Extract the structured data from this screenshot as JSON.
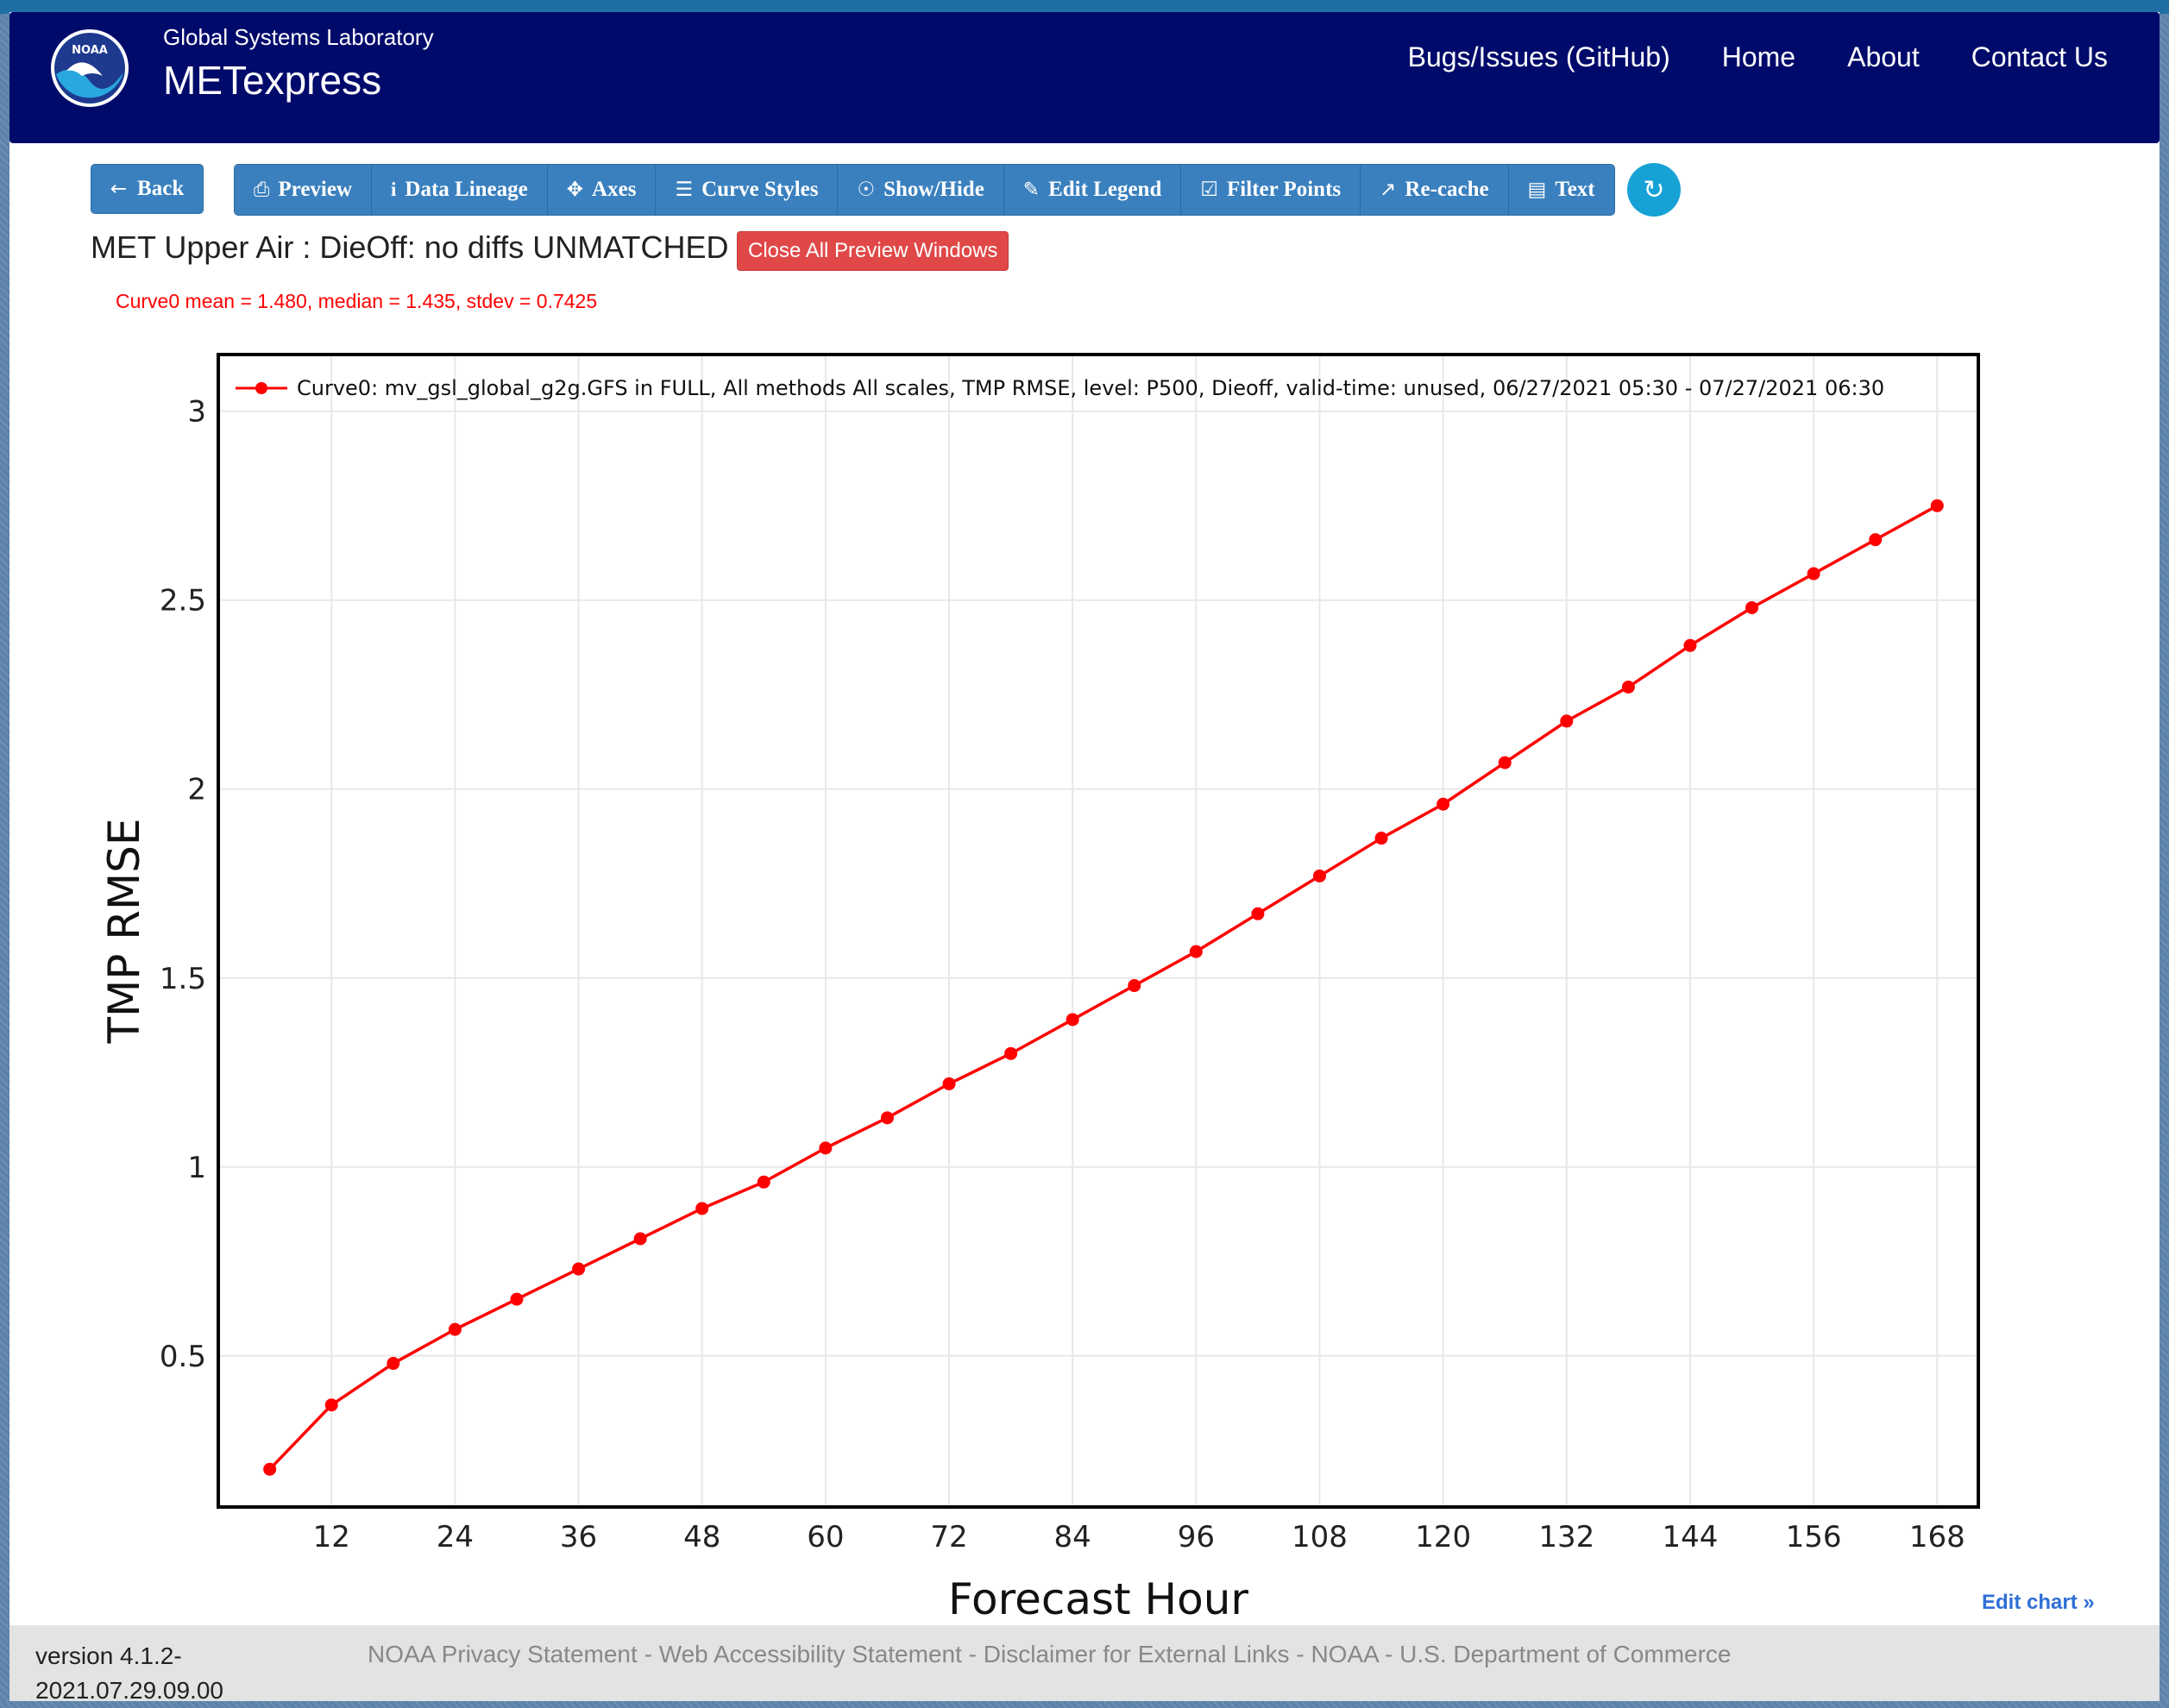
{
  "header": {
    "lab_name": "Global Systems Laboratory",
    "app_name": "METexpress",
    "nav": [
      "Bugs/Issues (GitHub)",
      "Home",
      "About",
      "Contact Us"
    ],
    "logo_text": "NOAA"
  },
  "toolbar": {
    "back_label": "Back",
    "buttons": [
      {
        "label": "Preview",
        "icon": "print-icon"
      },
      {
        "label": "Data Lineage",
        "icon": "info-icon"
      },
      {
        "label": "Axes",
        "icon": "move-icon"
      },
      {
        "label": "Curve Styles",
        "icon": "list-icon"
      },
      {
        "label": "Show/Hide",
        "icon": "eye-slash-icon"
      },
      {
        "label": "Edit Legend",
        "icon": "pencil-icon"
      },
      {
        "label": "Filter Points",
        "icon": "check-square-icon"
      },
      {
        "label": "Re-cache",
        "icon": "line-chart-icon"
      },
      {
        "label": "Text",
        "icon": "file-text-icon"
      }
    ],
    "refresh_icon": "refresh-icon"
  },
  "plot": {
    "title": "MET Upper Air : DieOff: no diffs UNMATCHED",
    "close_windows_label": "Close All Preview Windows",
    "stats": "Curve0 mean = 1.480, median = 1.435, stdev = 0.7425",
    "edit_chart_label": "Edit chart »"
  },
  "chart_data": {
    "type": "line",
    "xlabel": "Forecast Hour",
    "ylabel": "TMP RMSE",
    "xticks": [
      12,
      24,
      36,
      48,
      60,
      72,
      84,
      96,
      108,
      120,
      132,
      144,
      156,
      168
    ],
    "yticks": [
      0.5,
      1,
      1.5,
      2,
      2.5,
      3
    ],
    "xlim": [
      1,
      172
    ],
    "ylim": [
      0.1,
      3.15
    ],
    "grid": true,
    "legend_position": "top",
    "series": [
      {
        "name": "Curve0: mv_gsl_global_g2g.GFS in FULL, All methods All scales, TMP RMSE, level: P500, Dieoff, valid-time: unused, 06/27/2021 05:30 - 07/27/2021 06:30",
        "color": "#ff0000",
        "x": [
          6,
          12,
          18,
          24,
          30,
          36,
          42,
          48,
          54,
          60,
          66,
          72,
          78,
          84,
          90,
          96,
          102,
          108,
          114,
          120,
          126,
          132,
          138,
          144,
          150,
          156,
          162,
          168
        ],
        "y": [
          0.2,
          0.37,
          0.48,
          0.57,
          0.65,
          0.73,
          0.81,
          0.89,
          0.96,
          1.05,
          1.13,
          1.22,
          1.3,
          1.39,
          1.48,
          1.57,
          1.67,
          1.77,
          1.87,
          1.96,
          2.07,
          2.18,
          2.27,
          2.38,
          2.48,
          2.57,
          2.66,
          2.75
        ]
      }
    ]
  },
  "footer": {
    "version": "version 4.1.2-2021.07.29.09.00",
    "links": [
      "NOAA Privacy Statement",
      "Web Accessibility Statement",
      "Disclaimer for External Links",
      "NOAA",
      "U.S. Department of Commerce"
    ],
    "separator": " - "
  }
}
